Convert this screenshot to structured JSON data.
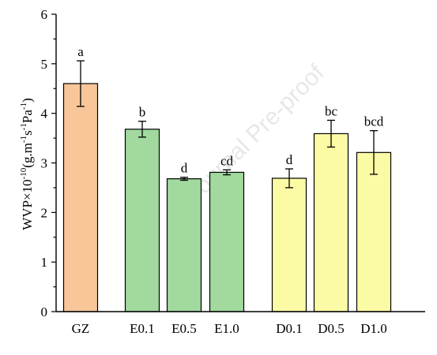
{
  "chart_data": {
    "type": "bar",
    "title": "",
    "xlabel": "",
    "ylabel": "WVP×10",
    "ylabel_exp_1": "-10",
    "ylabel_unit_a": "(g.m",
    "ylabel_exp_2": "-1",
    "ylabel_unit_b": "s",
    "ylabel_exp_3": "-1",
    "ylabel_unit_c": "Pa",
    "ylabel_exp_4": "-1",
    "ylabel_unit_d": ")",
    "ylim": [
      0,
      6
    ],
    "yticks": [
      "0",
      "1",
      "2",
      "3",
      "4",
      "5",
      "6"
    ],
    "grid": false,
    "categories": [
      "GZ",
      "E0.1",
      "E0.5",
      "E1.0",
      "D0.1",
      "D0.5",
      "D1.0"
    ],
    "values": [
      4.6,
      3.68,
      2.68,
      2.81,
      2.69,
      3.59,
      3.21
    ],
    "errors": [
      0.46,
      0.16,
      0.03,
      0.05,
      0.19,
      0.27,
      0.44
    ],
    "significance": [
      "a",
      "b",
      "d",
      "cd",
      "d",
      "bc",
      "bcd"
    ],
    "colors": [
      "#F9C69A",
      "#A1D99F",
      "#A1D99F",
      "#A1D99F",
      "#FCFBA5",
      "#FCFBA5",
      "#FCFBA5"
    ]
  },
  "watermark": "Journal Pre-proof"
}
